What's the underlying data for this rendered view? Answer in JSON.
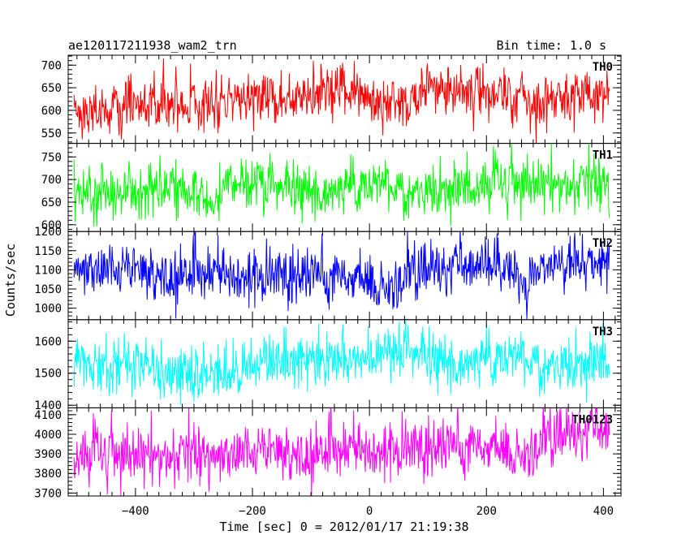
{
  "header": {
    "left_title": "ae120117211938_wam2_trn",
    "right_title": "Bin time: 1.0 s"
  },
  "axes": {
    "ylabel": "Counts/sec",
    "xlabel": "Time [sec] 0 = 2012/01/17 21:19:38"
  },
  "chart_data": {
    "type": "line",
    "layout": "stacked-panels",
    "x": {
      "range": [
        -515,
        430
      ],
      "ticks": [
        -400,
        -200,
        0,
        200,
        400
      ],
      "data_range": [
        -505,
        410
      ],
      "bin": 1.0
    },
    "grid": false,
    "legend": "none",
    "panels": [
      {
        "name": "TH0",
        "color": "#ff0000",
        "ylim": [
          527,
          722
        ],
        "ticks": [
          550,
          600,
          650,
          700
        ],
        "mean_start": 608,
        "mean_end": 640,
        "noise_sd": 28,
        "spike": 20
      },
      {
        "name": "TH1",
        "color": "#00ff00",
        "ylim": [
          585,
          780
        ],
        "ticks": [
          600,
          650,
          700,
          750
        ],
        "mean_start": 668,
        "mean_end": 695,
        "noise_sd": 28,
        "spike": 20
      },
      {
        "name": "TH2",
        "color": "#0000ff",
        "ylim": [
          970,
          1200
        ],
        "ticks": [
          1000,
          1050,
          1100,
          1150,
          1200
        ],
        "mean_start": 1100,
        "mean_end": 1085,
        "noise_sd": 35,
        "spike": 25
      },
      {
        "name": "TH3",
        "color": "#00ffff",
        "ylim": [
          1392,
          1667
        ],
        "ticks": [
          1400,
          1500,
          1600
        ],
        "mean_start": 1515,
        "mean_end": 1545,
        "noise_sd": 42,
        "spike": 30
      },
      {
        "name": "TH0123",
        "color": "#ff00ff",
        "ylim": [
          3685,
          4135
        ],
        "ticks": [
          3700,
          3800,
          3900,
          4000,
          4100
        ],
        "mean_start": 3880,
        "mean_end": 3985,
        "noise_sd": 70,
        "spike": 50
      }
    ]
  }
}
